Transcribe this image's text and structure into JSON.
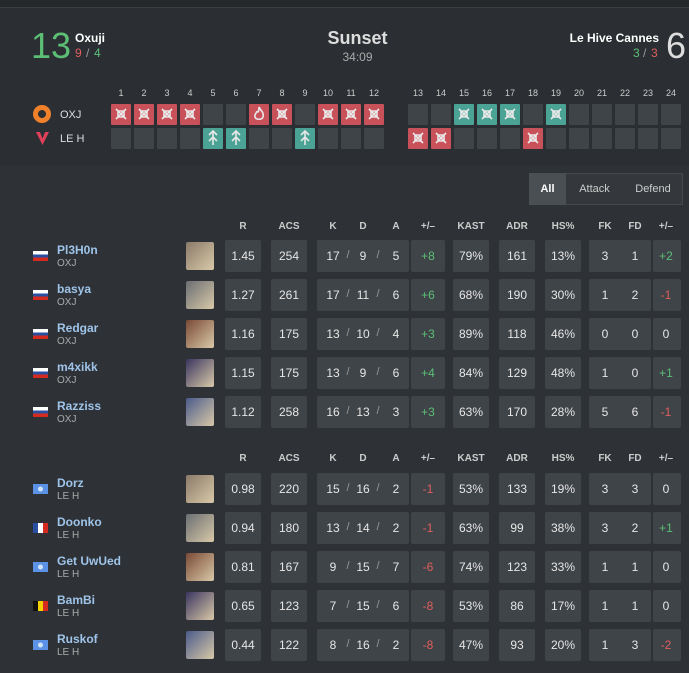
{
  "header": {
    "team1": {
      "score": "13",
      "name": "Oxuji",
      "half1": "9",
      "half2": "4"
    },
    "map": "Sunset",
    "duration": "34:09",
    "team2": {
      "name": "Le Hive Cannes",
      "half1": "3",
      "half2": "3",
      "score": "6"
    },
    "separator": "/"
  },
  "rounds": {
    "team1_tag": "OXJ",
    "team2_tag": "LE H",
    "list": [
      {
        "number": "1",
        "winner": 1,
        "side": "attack",
        "icon": "elim"
      },
      {
        "number": "2",
        "winner": 1,
        "side": "attack",
        "icon": "elim"
      },
      {
        "number": "3",
        "winner": 1,
        "side": "attack",
        "icon": "elim"
      },
      {
        "number": "4",
        "winner": 1,
        "side": "attack",
        "icon": "elim"
      },
      {
        "number": "5",
        "winner": 2,
        "side": "defend",
        "icon": "defuse"
      },
      {
        "number": "6",
        "winner": 2,
        "side": "defend",
        "icon": "defuse"
      },
      {
        "number": "7",
        "winner": 1,
        "side": "attack",
        "icon": "boom"
      },
      {
        "number": "8",
        "winner": 1,
        "side": "attack",
        "icon": "elim"
      },
      {
        "number": "9",
        "winner": 2,
        "side": "defend",
        "icon": "defuse"
      },
      {
        "number": "10",
        "winner": 1,
        "side": "attack",
        "icon": "elim"
      },
      {
        "number": "11",
        "winner": 1,
        "side": "attack",
        "icon": "elim"
      },
      {
        "number": "12",
        "winner": 1,
        "side": "attack",
        "icon": "elim"
      },
      {
        "number": "13",
        "winner": 2,
        "side": "attack",
        "icon": "elim"
      },
      {
        "number": "14",
        "winner": 2,
        "side": "attack",
        "icon": "elim"
      },
      {
        "number": "15",
        "winner": 1,
        "side": "defend",
        "icon": "elim"
      },
      {
        "number": "16",
        "winner": 1,
        "side": "defend",
        "icon": "elim"
      },
      {
        "number": "17",
        "winner": 1,
        "side": "defend",
        "icon": "elim"
      },
      {
        "number": "18",
        "winner": 2,
        "side": "attack",
        "icon": "elim"
      },
      {
        "number": "19",
        "winner": 1,
        "side": "defend",
        "icon": "elim"
      },
      {
        "number": "20",
        "winner": null,
        "side": null,
        "icon": null
      },
      {
        "number": "21",
        "winner": null,
        "side": null,
        "icon": null
      },
      {
        "number": "22",
        "winner": null,
        "side": null,
        "icon": null
      },
      {
        "number": "23",
        "winner": null,
        "side": null,
        "icon": null
      },
      {
        "number": "24",
        "winner": null,
        "side": null,
        "icon": null
      }
    ]
  },
  "tabs": [
    "All",
    "Attack",
    "Defend"
  ],
  "active_tab": 0,
  "teams": [
    {
      "columns": [
        "R",
        "ACS",
        "K",
        "D",
        "A",
        "+/–",
        "KAST",
        "ADR",
        "HS%",
        "FK",
        "FD",
        "+/–"
      ],
      "players": [
        {
          "name": "Pl3H0n",
          "team": "OXJ",
          "flag": "ru",
          "stats": [
            "1.45",
            "254",
            "17",
            "9",
            "5",
            "+8",
            "79%",
            "161",
            "13%",
            "3",
            "1",
            "+2"
          ]
        },
        {
          "name": "basya",
          "team": "OXJ",
          "flag": "ru",
          "stats": [
            "1.27",
            "261",
            "17",
            "11",
            "6",
            "+6",
            "68%",
            "190",
            "30%",
            "1",
            "2",
            "-1"
          ]
        },
        {
          "name": "Redgar",
          "team": "OXJ",
          "flag": "ru",
          "stats": [
            "1.16",
            "175",
            "13",
            "10",
            "4",
            "+3",
            "89%",
            "118",
            "46%",
            "0",
            "0",
            "0"
          ]
        },
        {
          "name": "m4xikk",
          "team": "OXJ",
          "flag": "ru",
          "stats": [
            "1.15",
            "175",
            "13",
            "9",
            "6",
            "+4",
            "84%",
            "129",
            "48%",
            "1",
            "0",
            "+1"
          ]
        },
        {
          "name": "Razziss",
          "team": "OXJ",
          "flag": "ru",
          "stats": [
            "1.12",
            "258",
            "16",
            "13",
            "3",
            "+3",
            "63%",
            "170",
            "28%",
            "5",
            "6",
            "-1"
          ]
        }
      ]
    },
    {
      "columns": [
        "R",
        "ACS",
        "K",
        "D",
        "A",
        "+/–",
        "KAST",
        "ADR",
        "HS%",
        "FK",
        "FD",
        "+/–"
      ],
      "players": [
        {
          "name": "Dorz",
          "team": "LE H",
          "flag": "un",
          "stats": [
            "0.98",
            "220",
            "15",
            "16",
            "2",
            "-1",
            "53%",
            "133",
            "19%",
            "3",
            "3",
            "0"
          ]
        },
        {
          "name": "Doonko",
          "team": "LE H",
          "flag": "fr",
          "stats": [
            "0.94",
            "180",
            "13",
            "14",
            "2",
            "-1",
            "63%",
            "99",
            "38%",
            "3",
            "2",
            "+1"
          ]
        },
        {
          "name": "Get UwUed",
          "team": "LE H",
          "flag": "un",
          "stats": [
            "0.81",
            "167",
            "9",
            "15",
            "7",
            "-6",
            "74%",
            "123",
            "33%",
            "1",
            "1",
            "0"
          ]
        },
        {
          "name": "BamBi",
          "team": "LE H",
          "flag": "be",
          "stats": [
            "0.65",
            "123",
            "7",
            "15",
            "6",
            "-8",
            "53%",
            "86",
            "17%",
            "1",
            "1",
            "0"
          ]
        },
        {
          "name": "Ruskof",
          "team": "LE H",
          "flag": "un",
          "stats": [
            "0.44",
            "122",
            "8",
            "16",
            "2",
            "-8",
            "47%",
            "93",
            "20%",
            "1",
            "3",
            "-2"
          ]
        }
      ]
    }
  ]
}
